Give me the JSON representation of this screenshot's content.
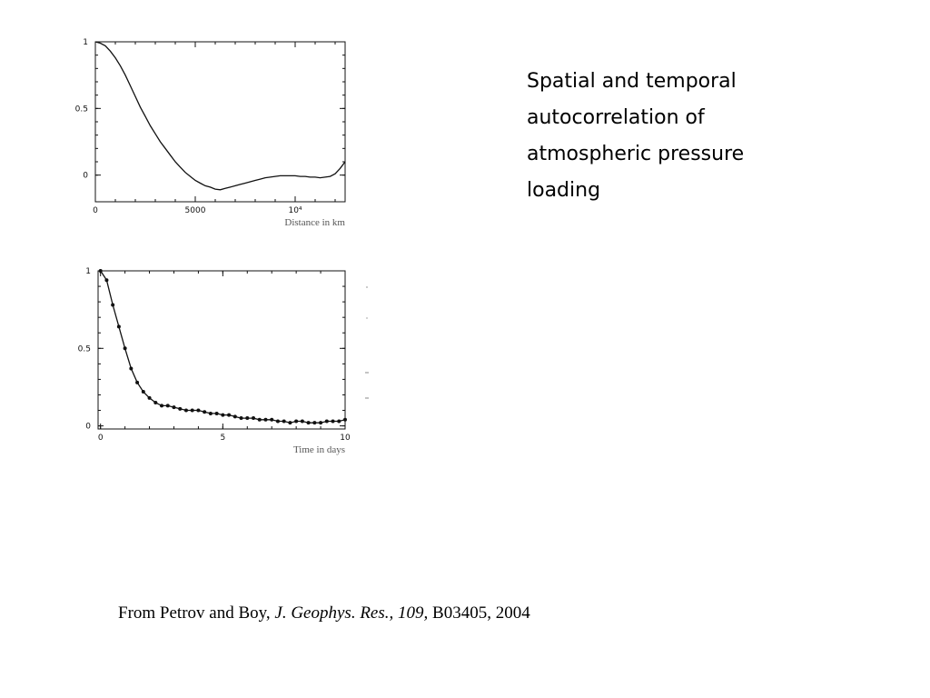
{
  "caption": {
    "line1": "Spatial and temporal",
    "line2": "autocorrelation of",
    "line3": "atmospheric pressure",
    "line4": "loading"
  },
  "citation": {
    "prefix": "From Petrov and Boy, ",
    "journal": "J. Geophys. Res., 109,",
    "suffix": " B03405, 2004"
  },
  "chart_data": [
    {
      "type": "line",
      "title": "",
      "xlabel": "Distance in km",
      "ylabel": "",
      "xlim": [
        0,
        12500
      ],
      "ylim": [
        -0.2,
        1.0
      ],
      "xticks": [
        {
          "value": 0,
          "label": "0"
        },
        {
          "value": 5000,
          "label": "5000"
        },
        {
          "value": 10000,
          "label": "10⁴"
        }
      ],
      "yticks": [
        {
          "value": 0,
          "label": "0"
        },
        {
          "value": 0.5,
          "label": "0.5"
        },
        {
          "value": 1,
          "label": "1"
        }
      ],
      "markers": false,
      "series": [
        {
          "x": [
            0,
            250,
            500,
            750,
            1000,
            1250,
            1500,
            1750,
            2000,
            2250,
            2500,
            2750,
            3000,
            3250,
            3500,
            3750,
            4000,
            4250,
            4500,
            4750,
            5000,
            5250,
            5500,
            5750,
            6000,
            6250,
            6500,
            6750,
            7000,
            7250,
            7500,
            7750,
            8000,
            8250,
            8500,
            8750,
            9000,
            9250,
            9500,
            9750,
            10000,
            10250,
            10500,
            10750,
            11000,
            11250,
            11500,
            11750,
            12000,
            12250,
            12500
          ],
          "y": [
            1.0,
            0.99,
            0.97,
            0.93,
            0.88,
            0.82,
            0.75,
            0.67,
            0.59,
            0.51,
            0.44,
            0.37,
            0.31,
            0.25,
            0.2,
            0.15,
            0.1,
            0.06,
            0.02,
            -0.01,
            -0.04,
            -0.06,
            -0.08,
            -0.09,
            -0.105,
            -0.11,
            -0.1,
            -0.09,
            -0.08,
            -0.07,
            -0.06,
            -0.05,
            -0.04,
            -0.03,
            -0.02,
            -0.015,
            -0.01,
            -0.005,
            -0.005,
            -0.005,
            -0.005,
            -0.01,
            -0.01,
            -0.015,
            -0.015,
            -0.02,
            -0.015,
            -0.01,
            0.01,
            0.05,
            0.1
          ]
        }
      ]
    },
    {
      "type": "line",
      "title": "",
      "xlabel": "Time in days",
      "ylabel": "",
      "xlim": [
        -0.1,
        10
      ],
      "ylim": [
        -0.02,
        1.0
      ],
      "xticks": [
        {
          "value": 0,
          "label": "0"
        },
        {
          "value": 5,
          "label": "5"
        },
        {
          "value": 10,
          "label": "10"
        }
      ],
      "yticks": [
        {
          "value": 0,
          "label": "0"
        },
        {
          "value": 0.5,
          "label": "0.5"
        },
        {
          "value": 1,
          "label": "1"
        }
      ],
      "markers": true,
      "series": [
        {
          "x": [
            0,
            0.25,
            0.5,
            0.75,
            1.0,
            1.25,
            1.5,
            1.75,
            2.0,
            2.25,
            2.5,
            2.75,
            3.0,
            3.25,
            3.5,
            3.75,
            4.0,
            4.25,
            4.5,
            4.75,
            5.0,
            5.25,
            5.5,
            5.75,
            6.0,
            6.25,
            6.5,
            6.75,
            7.0,
            7.25,
            7.5,
            7.75,
            8.0,
            8.25,
            8.5,
            8.75,
            9.0,
            9.25,
            9.5,
            9.75,
            10.0
          ],
          "y": [
            1.0,
            0.94,
            0.78,
            0.64,
            0.5,
            0.37,
            0.28,
            0.22,
            0.18,
            0.15,
            0.13,
            0.13,
            0.12,
            0.11,
            0.1,
            0.1,
            0.1,
            0.09,
            0.08,
            0.08,
            0.07,
            0.07,
            0.06,
            0.05,
            0.05,
            0.05,
            0.04,
            0.04,
            0.04,
            0.03,
            0.03,
            0.02,
            0.03,
            0.03,
            0.02,
            0.02,
            0.02,
            0.03,
            0.03,
            0.03,
            0.04
          ]
        }
      ]
    }
  ]
}
